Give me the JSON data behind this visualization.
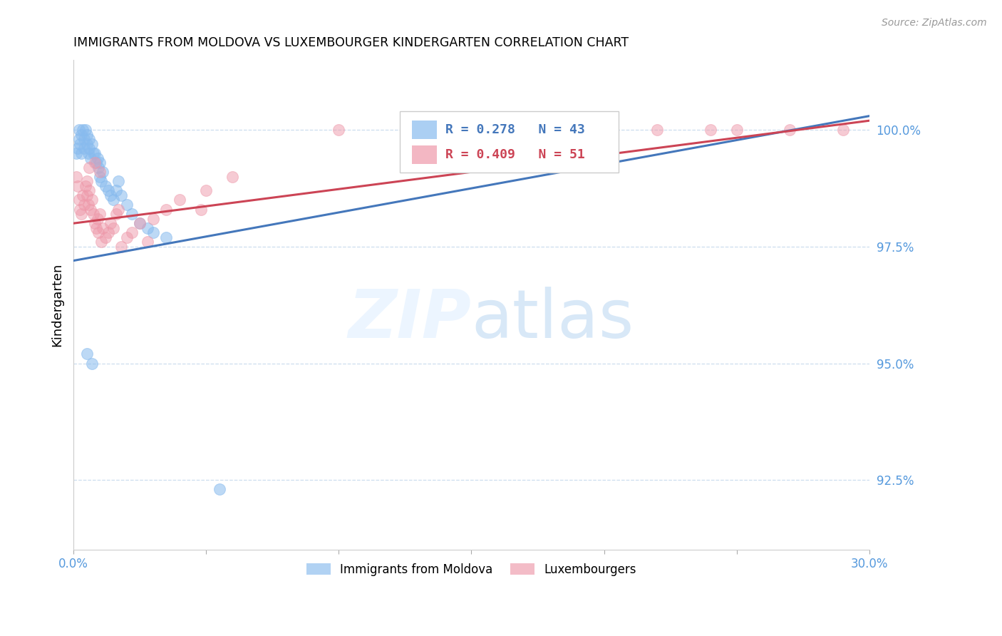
{
  "title": "IMMIGRANTS FROM MOLDOVA VS LUXEMBOURGER KINDERGARTEN CORRELATION CHART",
  "source": "Source: ZipAtlas.com",
  "ylabel": "Kindergarten",
  "xlim": [
    0.0,
    30.0
  ],
  "ylim": [
    91.0,
    101.5
  ],
  "yticks": [
    92.5,
    95.0,
    97.5,
    100.0
  ],
  "ytick_labels": [
    "92.5%",
    "95.0%",
    "97.5%",
    "100.0%"
  ],
  "xticks": [
    0.0,
    5.0,
    10.0,
    15.0,
    20.0,
    25.0,
    30.0
  ],
  "xtick_labels": [
    "0.0%",
    "",
    "",
    "",
    "",
    "",
    "30.0%"
  ],
  "blue_R": 0.278,
  "blue_N": 43,
  "pink_R": 0.409,
  "pink_N": 51,
  "blue_label": "Immigrants from Moldova",
  "pink_label": "Luxembourgers",
  "blue_color": "#88BBEE",
  "pink_color": "#EE99AA",
  "blue_line_color": "#4477BB",
  "pink_line_color": "#CC4455",
  "axis_color": "#5599DD",
  "background_color": "#ffffff",
  "blue_x": [
    0.1,
    0.15,
    0.2,
    0.2,
    0.25,
    0.3,
    0.3,
    0.35,
    0.4,
    0.4,
    0.45,
    0.5,
    0.5,
    0.55,
    0.6,
    0.6,
    0.65,
    0.7,
    0.75,
    0.8,
    0.85,
    0.9,
    0.95,
    1.0,
    1.0,
    1.05,
    1.1,
    1.2,
    1.3,
    1.4,
    1.5,
    1.6,
    1.7,
    1.8,
    2.0,
    2.2,
    2.5,
    2.8,
    3.0,
    3.5,
    0.5,
    0.7,
    5.5
  ],
  "blue_y": [
    99.5,
    99.6,
    100.0,
    99.8,
    99.7,
    99.9,
    99.5,
    100.0,
    99.8,
    99.6,
    100.0,
    99.9,
    99.7,
    99.5,
    99.8,
    99.6,
    99.4,
    99.7,
    99.5,
    99.5,
    99.3,
    99.4,
    99.2,
    99.3,
    99.0,
    98.9,
    99.1,
    98.8,
    98.7,
    98.6,
    98.5,
    98.7,
    98.9,
    98.6,
    98.4,
    98.2,
    98.0,
    97.9,
    97.8,
    97.7,
    95.2,
    95.0,
    92.3
  ],
  "pink_x": [
    0.1,
    0.15,
    0.2,
    0.25,
    0.3,
    0.35,
    0.4,
    0.45,
    0.5,
    0.5,
    0.55,
    0.6,
    0.65,
    0.7,
    0.75,
    0.8,
    0.85,
    0.9,
    0.95,
    1.0,
    1.05,
    1.1,
    1.2,
    1.3,
    1.4,
    1.5,
    1.6,
    1.7,
    1.8,
    2.0,
    2.2,
    2.5,
    2.8,
    3.0,
    3.5,
    4.0,
    5.0,
    6.0,
    0.6,
    0.8,
    1.0,
    10.0,
    15.0,
    18.0,
    20.0,
    22.0,
    24.0,
    25.0,
    27.0,
    29.0,
    4.8
  ],
  "pink_y": [
    99.0,
    98.8,
    98.5,
    98.3,
    98.2,
    98.6,
    98.4,
    98.8,
    98.9,
    98.6,
    98.4,
    98.7,
    98.3,
    98.5,
    98.2,
    98.0,
    97.9,
    98.1,
    97.8,
    98.2,
    97.6,
    97.9,
    97.7,
    97.8,
    98.0,
    97.9,
    98.2,
    98.3,
    97.5,
    97.7,
    97.8,
    98.0,
    97.6,
    98.1,
    98.3,
    98.5,
    98.7,
    99.0,
    99.2,
    99.3,
    99.1,
    100.0,
    100.0,
    100.0,
    100.0,
    100.0,
    100.0,
    100.0,
    100.0,
    100.0,
    98.3
  ],
  "blue_line_x0": 0.0,
  "blue_line_y0": 97.2,
  "blue_line_x1": 30.0,
  "blue_line_y1": 100.3,
  "pink_line_x0": 0.0,
  "pink_line_y0": 98.0,
  "pink_line_x1": 30.0,
  "pink_line_y1": 100.2
}
